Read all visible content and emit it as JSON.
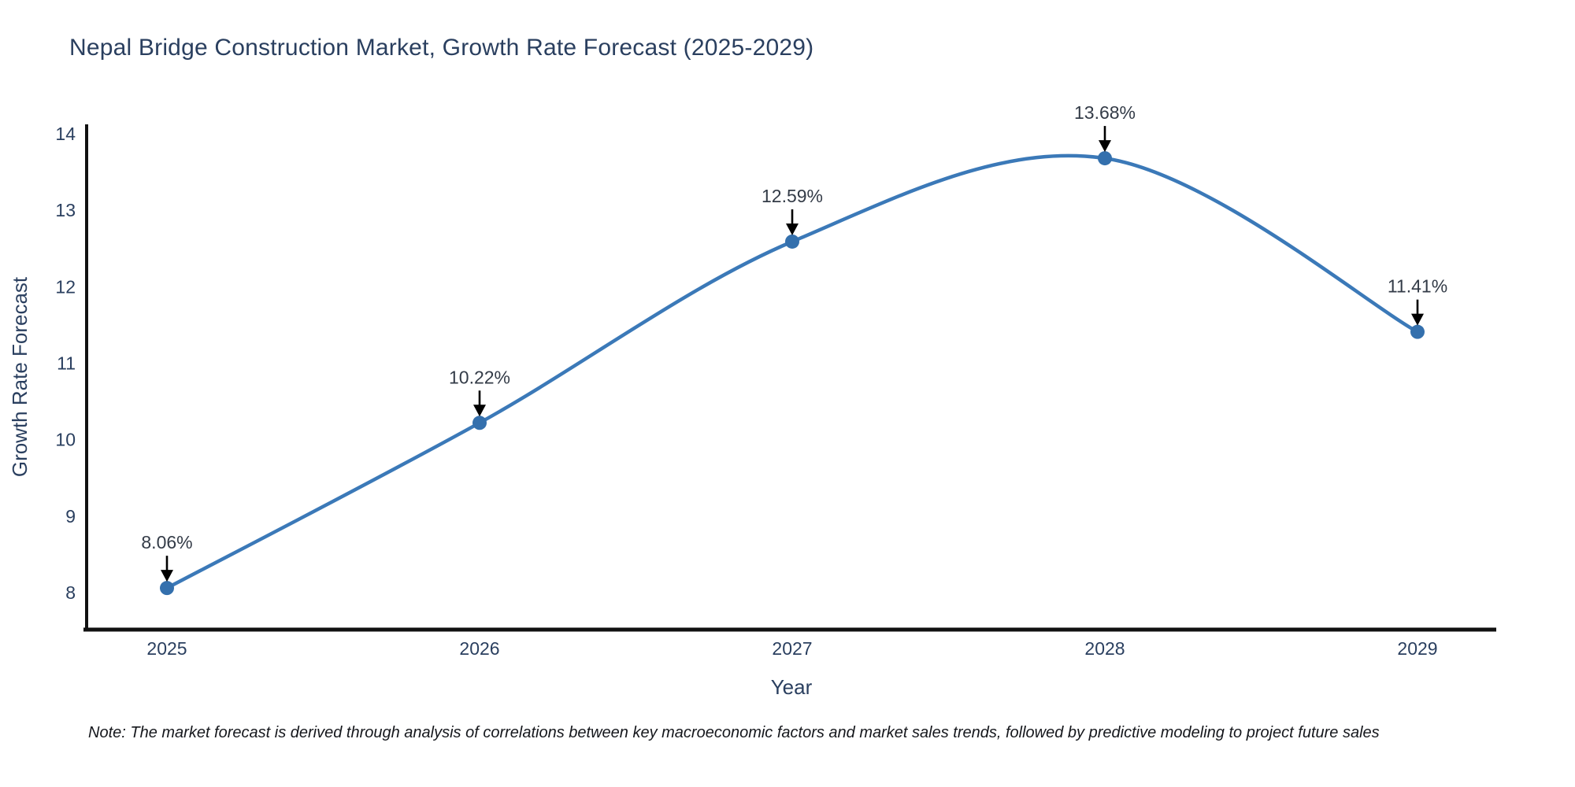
{
  "figure": {
    "note": "Note: The market forecast is derived through analysis of correlations between key macroeconomic factors and market sales trends, followed by predictive modeling to project future sales"
  },
  "chart_data": {
    "type": "line",
    "title": "Nepal Bridge Construction Market, Growth Rate Forecast (2025-2029)",
    "x": [
      2025,
      2026,
      2027,
      2028,
      2029
    ],
    "values": [
      8.06,
      10.22,
      12.59,
      13.68,
      11.41
    ],
    "point_labels": [
      "8.06%",
      "10.22%",
      "12.59%",
      "13.68%",
      "11.41%"
    ],
    "xlabel": "Year",
    "ylabel": "Growth Rate Forecast",
    "xticks": [
      "2025",
      "2026",
      "2027",
      "2028",
      "2029"
    ],
    "yticks": [
      8,
      9,
      10,
      11,
      12,
      13,
      14
    ],
    "ylim": [
      7.52,
      14.12
    ],
    "line_shape": "spline",
    "grid": false,
    "legend": "none",
    "colors": {
      "line": "#3b79b8",
      "marker": "#3470ad",
      "axis_line": "#111111",
      "title_text": "#2a3f5f",
      "axis_title_text": "#2a3f5f",
      "tick_text": "#2a3f5f",
      "annotation_text": "#333b47",
      "annotation_arrow": "#000000",
      "background": "#ffffff"
    }
  }
}
